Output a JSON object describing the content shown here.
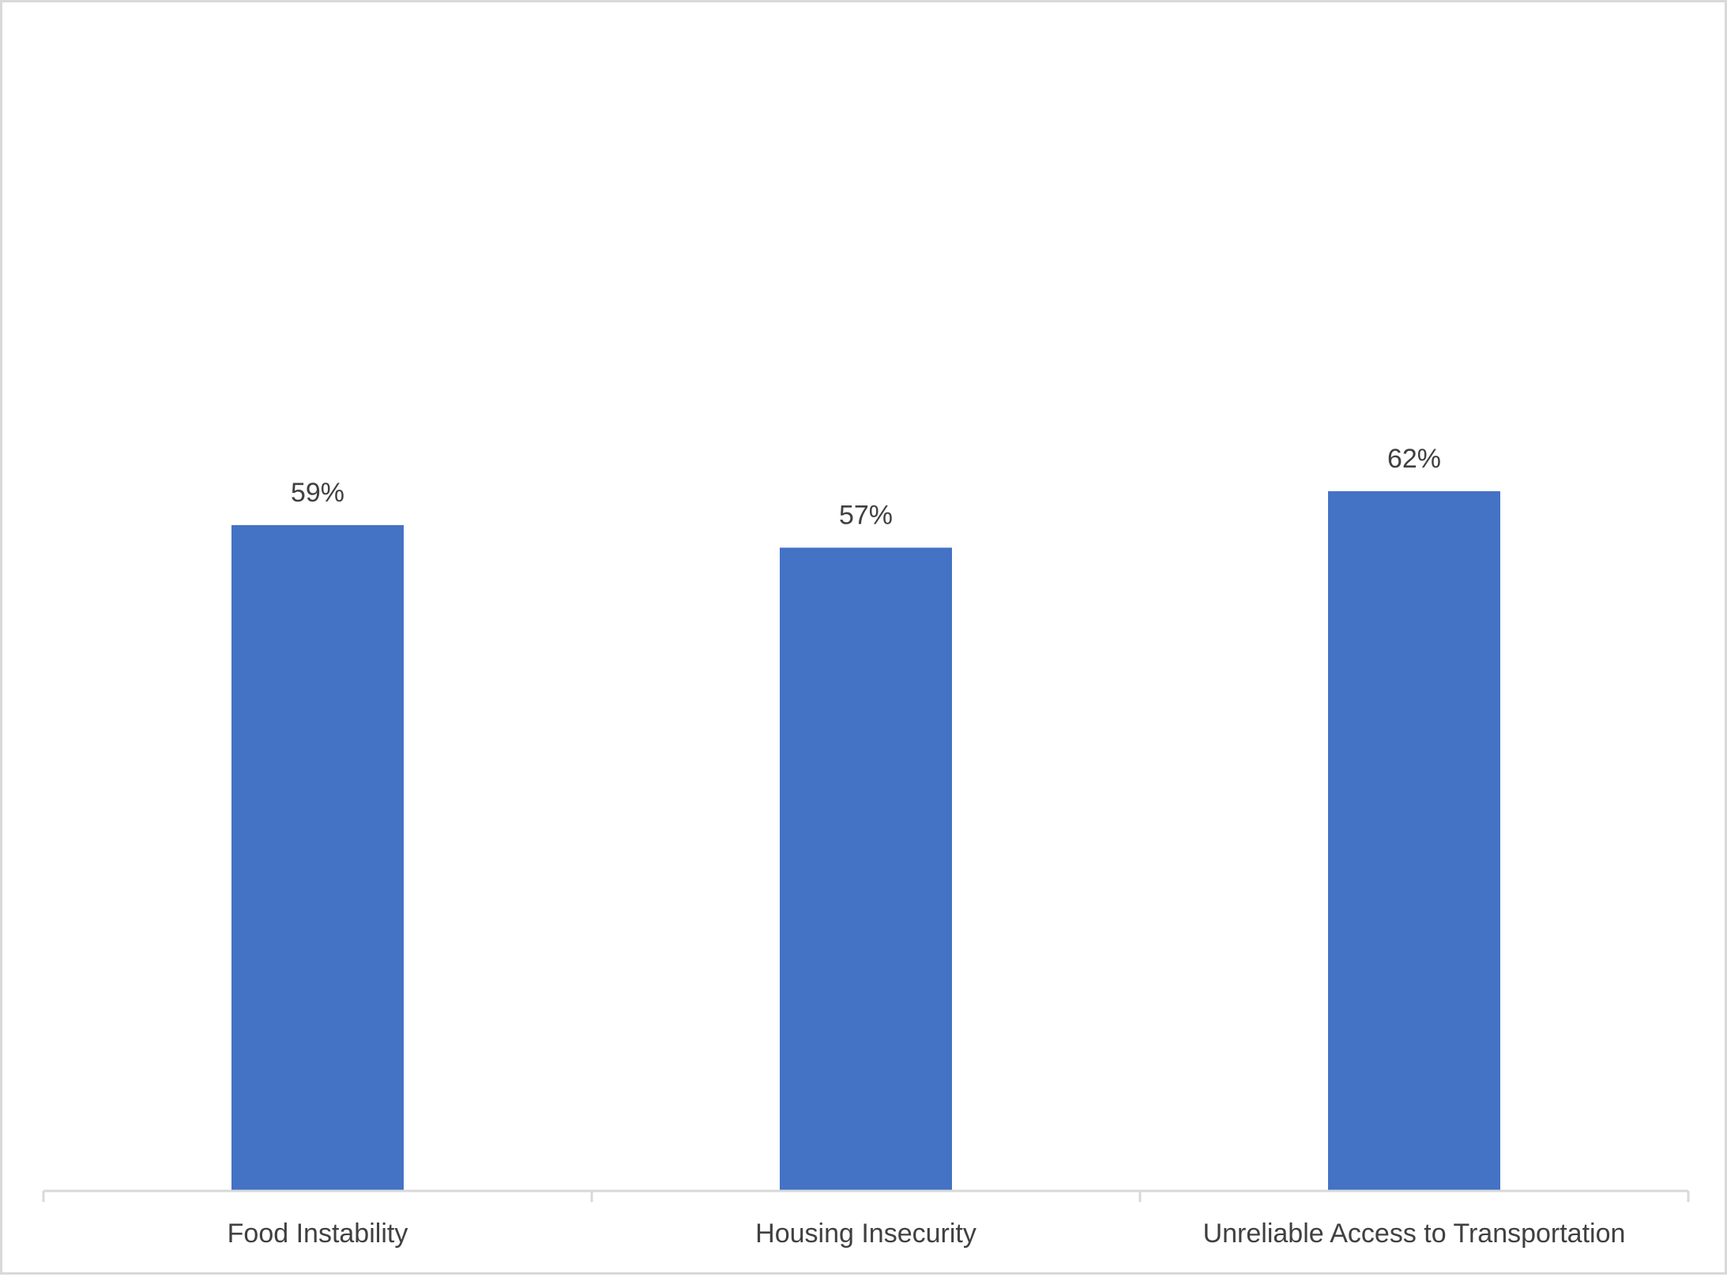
{
  "chart_data": {
    "type": "bar",
    "title": "",
    "xlabel": "",
    "ylabel": "",
    "categories": [
      "Food Instability",
      "Housing Insecurity",
      "Unreliable Access to Transportation"
    ],
    "values": [
      59,
      57,
      62
    ],
    "data_labels": [
      "59%",
      "57%",
      "62%"
    ],
    "ylim": [
      0,
      100
    ],
    "grid": false,
    "legend": "none",
    "bar_color": "#4472c4",
    "axis_color": "#d9d9d9",
    "text_color": "#404040"
  }
}
